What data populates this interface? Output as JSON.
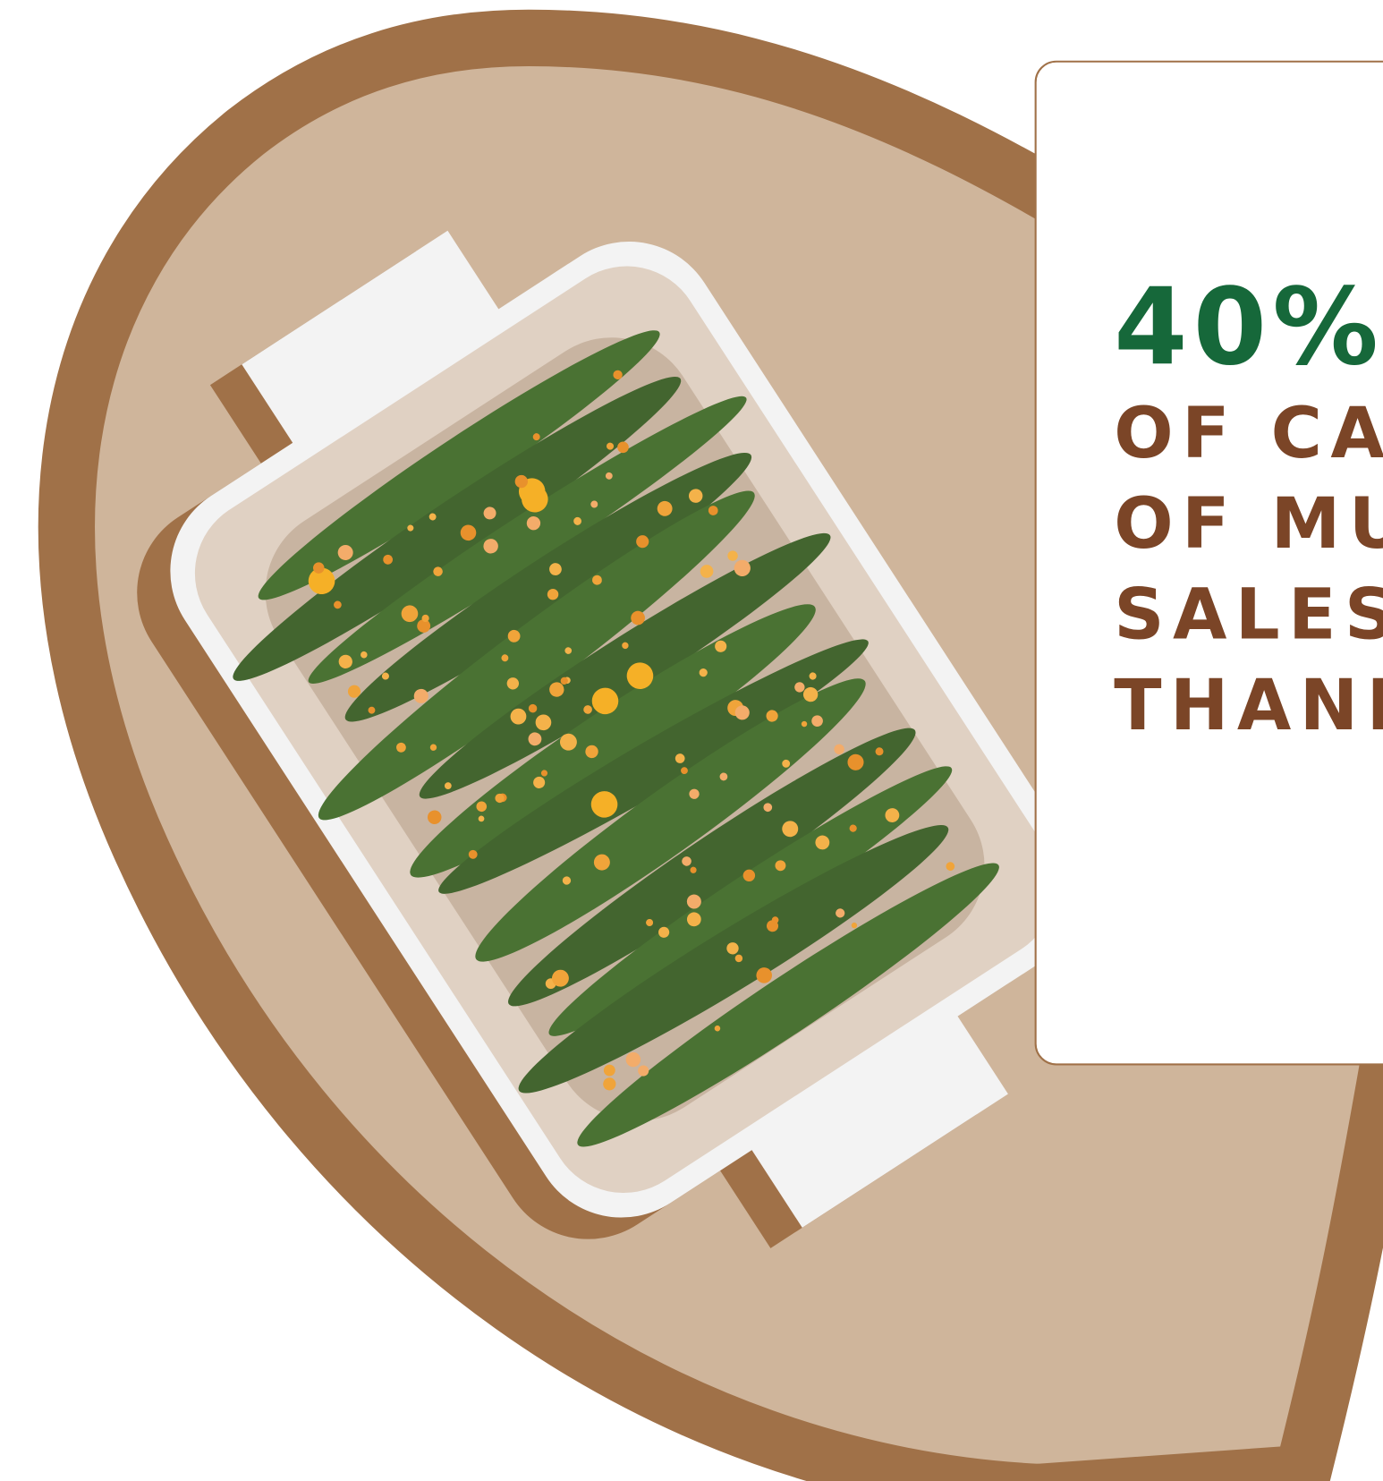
{
  "card": {
    "headline": "40%",
    "lines": [
      "OF CA",
      "OF MU",
      "SALES",
      "THANK"
    ]
  }
}
